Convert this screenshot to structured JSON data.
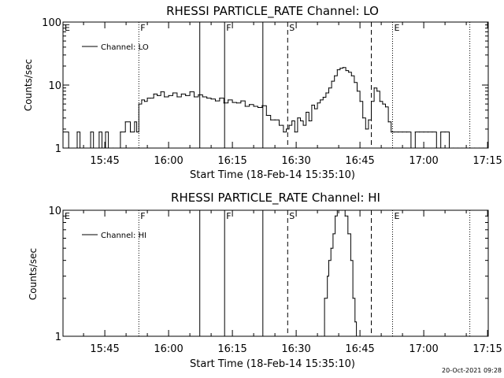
{
  "timestamp": "20-Oct-2021 09:28",
  "chart_data": [
    {
      "type": "line",
      "title": "RHESSI PARTICLE_RATE Channel: LO",
      "xlabel": "Start Time (18-Feb-14 15:35:10)",
      "ylabel": "Counts/sec",
      "y_scale": "log",
      "ylim": [
        1,
        100
      ],
      "y_ticks": [
        "1",
        "10",
        "100"
      ],
      "xlim": [
        "15:35:10",
        "17:15:10"
      ],
      "x_ticks": [
        "15:45",
        "16:00",
        "16:15",
        "16:30",
        "16:45",
        "17:00",
        "17:15"
      ],
      "legend": {
        "label": "Channel: LO",
        "placement": "top-left"
      },
      "grid": false,
      "series": [
        {
          "name": "Channel: LO",
          "x": [
            "15:35:10",
            "15:36:30",
            "15:38:30",
            "15:39:10",
            "15:41:40",
            "15:42:20",
            "15:43:40",
            "15:44:20",
            "15:45:10",
            "15:45:50",
            "15:47:00",
            "15:48:40",
            "15:49:50",
            "15:51:00",
            "15:52:00",
            "15:52:30",
            "15:53:00",
            "15:53:40",
            "15:54:20",
            "15:55:00",
            "15:55:40",
            "15:56:30",
            "15:57:20",
            "15:58:10",
            "15:59:00",
            "16:00:00",
            "16:01:00",
            "16:02:00",
            "16:03:00",
            "16:04:00",
            "16:05:00",
            "16:06:00",
            "16:07:00",
            "16:08:00",
            "16:09:00",
            "16:10:00",
            "16:11:00",
            "16:12:00",
            "16:13:00",
            "16:14:00",
            "16:15:00",
            "16:16:00",
            "16:17:00",
            "16:18:00",
            "16:19:00",
            "16:20:00",
            "16:21:00",
            "16:22:00",
            "16:23:00",
            "16:24:00",
            "16:25:00",
            "16:26:00",
            "16:27:00",
            "16:27:40",
            "16:28:20",
            "16:29:00",
            "16:29:40",
            "16:30:20",
            "16:31:00",
            "16:31:40",
            "16:32:20",
            "16:33:00",
            "16:33:40",
            "16:34:20",
            "16:35:00",
            "16:35:40",
            "16:36:20",
            "16:37:00",
            "16:37:40",
            "16:38:20",
            "16:39:00",
            "16:39:40",
            "16:40:20",
            "16:41:00",
            "16:41:40",
            "16:42:20",
            "16:43:00",
            "16:43:40",
            "16:44:20",
            "16:45:00",
            "16:45:40",
            "16:46:20",
            "16:47:00",
            "16:47:40",
            "16:48:20",
            "16:49:00",
            "16:49:40",
            "16:50:20",
            "16:51:00",
            "16:51:40",
            "16:52:20",
            "16:53:00",
            "16:54:00",
            "16:55:00",
            "16:56:00",
            "16:57:00",
            "16:58:00",
            "16:59:00",
            "17:00:00",
            "17:01:00",
            "17:02:00",
            "17:03:00",
            "17:04:00",
            "17:05:00",
            "17:06:00",
            "17:07:00",
            "17:08:00",
            "17:09:00",
            "17:10:00",
            "17:11:00",
            "17:12:00",
            "17:13:00",
            "17:14:00",
            "17:15:10"
          ],
          "y": [
            1.8,
            1,
            1.8,
            1,
            1.8,
            1,
            1.8,
            1,
            1.8,
            1,
            1,
            1.8,
            2.6,
            1.8,
            2.6,
            1.8,
            5,
            5.8,
            5.5,
            6.2,
            6.2,
            7.2,
            6.8,
            7.8,
            6.5,
            6.8,
            7.5,
            6.5,
            7.2,
            6.8,
            7.8,
            6.5,
            7.0,
            6.5,
            6.2,
            6.0,
            5.6,
            6.2,
            5.2,
            5.8,
            5.3,
            5.2,
            5.6,
            4.6,
            4.9,
            4.6,
            4.4,
            4.7,
            3.3,
            2.8,
            2.8,
            2.3,
            1.8,
            2.0,
            2.3,
            2.7,
            1.8,
            3.0,
            2.7,
            2.3,
            3.7,
            2.7,
            4.8,
            4.2,
            5.2,
            5.8,
            6.4,
            7.5,
            9.0,
            11.5,
            14,
            17.5,
            18.5,
            19.0,
            17.0,
            16.0,
            14.0,
            11.0,
            8.0,
            5.5,
            3.0,
            2.0,
            2.8,
            5.5,
            9.0,
            8.0,
            5.5,
            5.0,
            4.5,
            2.6,
            1.8,
            1.8,
            1.8,
            1.8,
            1.8,
            1,
            1.8,
            1.8,
            1.8,
            1.8,
            1.8,
            1,
            1.8,
            1.8,
            1,
            1,
            1,
            1,
            1,
            1,
            1,
            1,
            1,
            1
          ]
        }
      ],
      "markers": [
        {
          "time": "15:35:10",
          "label": "E",
          "style": "dotted"
        },
        {
          "time": "15:53:00",
          "label": "F",
          "style": "dotted"
        },
        {
          "time": "16:07:20",
          "label": "",
          "style": "solid"
        },
        {
          "time": "16:13:10",
          "label": "F",
          "style": "solid"
        },
        {
          "time": "16:22:10",
          "label": "",
          "style": "solid"
        },
        {
          "time": "16:28:00",
          "label": "S",
          "style": "dashed"
        },
        {
          "time": "16:47:40",
          "label": "",
          "style": "dashed"
        },
        {
          "time": "16:52:40",
          "label": "E",
          "style": "dotted"
        },
        {
          "time": "17:10:50",
          "label": "",
          "style": "dotted"
        }
      ]
    },
    {
      "type": "line",
      "title": "RHESSI PARTICLE_RATE Channel: HI",
      "xlabel": "Start Time (18-Feb-14 15:35:10)",
      "ylabel": "Counts/sec",
      "y_scale": "log",
      "ylim": [
        1,
        10
      ],
      "y_ticks": [
        "1",
        "10"
      ],
      "xlim": [
        "15:35:10",
        "17:15:10"
      ],
      "x_ticks": [
        "15:45",
        "16:00",
        "16:15",
        "16:30",
        "16:45",
        "17:00",
        "17:15"
      ],
      "legend": {
        "label": "Channel: HI",
        "placement": "top-left"
      },
      "grid": false,
      "series": [
        {
          "name": "Channel: HI",
          "x": [
            "16:36:00",
            "16:36:40",
            "16:37:20",
            "16:37:40",
            "16:38:10",
            "16:38:40",
            "16:39:10",
            "16:39:40",
            "16:40:10",
            "16:40:50",
            "16:41:30",
            "16:42:10",
            "16:42:50",
            "16:43:20",
            "16:43:50",
            "16:44:10"
          ],
          "y": [
            1,
            2.0,
            3.0,
            4.0,
            5.0,
            6.5,
            9.0,
            10,
            10,
            10,
            9.0,
            6.5,
            4.0,
            2.0,
            1.3,
            1
          ]
        }
      ],
      "markers": [
        {
          "time": "15:35:10",
          "label": "E",
          "style": "dotted"
        },
        {
          "time": "15:53:00",
          "label": "F",
          "style": "dotted"
        },
        {
          "time": "16:07:20",
          "label": "",
          "style": "solid"
        },
        {
          "time": "16:13:10",
          "label": "F",
          "style": "solid"
        },
        {
          "time": "16:22:10",
          "label": "",
          "style": "solid"
        },
        {
          "time": "16:28:00",
          "label": "S",
          "style": "dashed"
        },
        {
          "time": "16:47:40",
          "label": "",
          "style": "dashed"
        },
        {
          "time": "16:52:40",
          "label": "E",
          "style": "dotted"
        },
        {
          "time": "17:10:50",
          "label": "",
          "style": "dotted"
        }
      ]
    }
  ]
}
